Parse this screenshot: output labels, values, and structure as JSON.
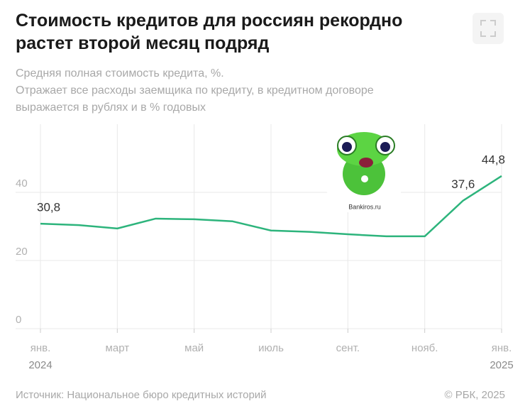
{
  "chart_data": {
    "type": "line",
    "title": "Стоимость кредитов для россиян рекордно растет второй месяц подряд",
    "subtitle": [
      "Средняя полная стоимость кредита, %.",
      "Отражает все расходы заемщика по кредиту, в кредитном договоре",
      "выражается в рублях и в % годовых"
    ],
    "categories": [
      "янв. 2024",
      null,
      "март",
      null,
      "май",
      null,
      "июль",
      null,
      "сент.",
      null,
      "нояб.",
      null,
      "янв. 2025"
    ],
    "series": [
      {
        "name": "Средняя полная стоимость кредита",
        "color": "#2db47c",
        "values": [
          30.8,
          30.4,
          29.4,
          32.3,
          32.1,
          31.5,
          28.8,
          28.4,
          27.7,
          27.1,
          27.1,
          37.6,
          44.8
        ],
        "value_labels": [
          "30,8",
          null,
          null,
          null,
          null,
          null,
          null,
          null,
          null,
          null,
          null,
          "37,6",
          "44,8"
        ]
      }
    ],
    "ylim": [
      0,
      60
    ],
    "yticks": [
      0,
      20,
      40
    ],
    "grid": true,
    "source": "Источник: Национальное бюро кредитных историй",
    "copyright": "© РБК, 2025",
    "watermark": "Bankiros.ru"
  }
}
